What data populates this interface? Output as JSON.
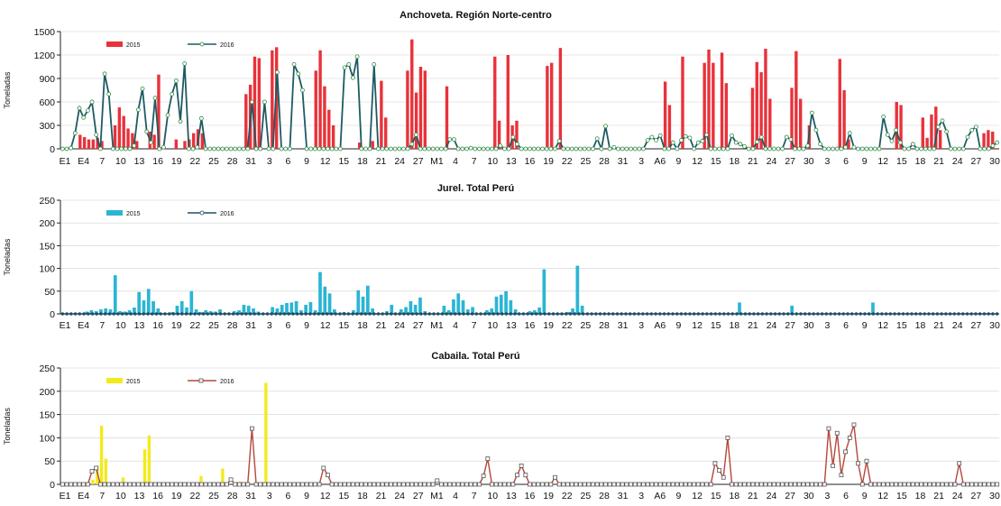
{
  "x_tick_labels": [
    "E1",
    "E4",
    "7",
    "10",
    "13",
    "16",
    "19",
    "22",
    "25",
    "28",
    "31",
    "3",
    "6",
    "9",
    "12",
    "15",
    "18",
    "21",
    "24",
    "27",
    "M1",
    "4",
    "7",
    "10",
    "13",
    "16",
    "19",
    "22",
    "25",
    "28",
    "31",
    "3",
    "A6",
    "9",
    "12",
    "15",
    "18",
    "21",
    "24",
    "27",
    "30",
    "3",
    "6",
    "9",
    "12",
    "15",
    "18",
    "21",
    "24",
    "27",
    "30"
  ],
  "chart_data": [
    {
      "type": "bar+line",
      "title": "Anchoveta. Región Norte-centro",
      "ylabel": "Toneladas",
      "ylim": [
        0,
        1500
      ],
      "yticks": [
        0,
        300,
        600,
        900,
        1200,
        1500
      ],
      "legend": [
        "2015",
        "2016"
      ],
      "colors": {
        "bar": "#e8323a",
        "line": "#1f5a63",
        "marker": "#2e8b45"
      },
      "bars_2015": [
        0,
        0,
        0,
        0,
        180,
        150,
        120,
        120,
        140,
        100,
        0,
        0,
        300,
        530,
        420,
        260,
        200,
        100,
        0,
        0,
        220,
        180,
        950,
        0,
        0,
        0,
        120,
        0,
        100,
        120,
        200,
        250,
        200,
        0,
        0,
        0,
        0,
        0,
        0,
        0,
        0,
        0,
        700,
        820,
        1180,
        1160,
        0,
        0,
        1260,
        1300,
        0,
        0,
        0,
        0,
        0,
        0,
        0,
        0,
        1000,
        1260,
        800,
        500,
        300,
        0,
        0,
        0,
        0,
        0,
        80,
        0,
        0,
        100,
        0,
        870,
        400,
        0,
        0,
        0,
        0,
        1000,
        1400,
        720,
        1050,
        1000,
        0,
        0,
        0,
        0,
        800,
        0,
        0,
        0,
        0,
        0,
        0,
        0,
        0,
        0,
        0,
        1180,
        360,
        0,
        1200,
        300,
        360,
        0,
        0,
        0,
        0,
        0,
        0,
        1060,
        1100,
        0,
        1290,
        0,
        0,
        0,
        0,
        0,
        0,
        0,
        0,
        0,
        0,
        0,
        0,
        0,
        0,
        0,
        0,
        0,
        0,
        0,
        0,
        0,
        0,
        0,
        860,
        560,
        0,
        0,
        1180,
        0,
        0,
        0,
        0,
        1100,
        1270,
        1100,
        0,
        1230,
        840,
        0,
        0,
        0,
        0,
        0,
        780,
        1110,
        980,
        1280,
        640,
        0,
        0,
        0,
        0,
        780,
        1250,
        640,
        0,
        300,
        0,
        0,
        0,
        0,
        0,
        0,
        1150,
        750,
        120,
        0,
        0,
        0,
        0,
        0,
        0,
        0,
        0,
        0,
        0,
        600,
        560,
        0,
        0,
        0,
        0,
        400,
        140,
        440,
        540,
        240,
        0,
        0,
        0,
        0,
        0,
        0,
        0,
        0,
        0,
        200,
        240,
        220,
        0
      ],
      "line_2016": [
        0,
        0,
        10,
        200,
        520,
        400,
        490,
        600,
        180,
        0,
        960,
        700,
        0,
        0,
        0,
        0,
        0,
        40,
        500,
        770,
        220,
        80,
        650,
        0,
        20,
        430,
        700,
        870,
        350,
        1090,
        0,
        0,
        20,
        390,
        0,
        0,
        0,
        0,
        0,
        0,
        0,
        0,
        0,
        0,
        0,
        600,
        0,
        0,
        600,
        0,
        0,
        980,
        0,
        0,
        0,
        1080,
        960,
        750,
        0,
        0,
        0,
        0,
        0,
        0,
        0,
        0,
        0,
        1040,
        1080,
        910,
        1180,
        0,
        0,
        0,
        1080,
        0,
        0,
        0,
        0,
        0,
        0,
        0,
        0,
        60,
        180,
        0,
        0,
        0,
        0,
        0,
        0,
        0,
        120,
        120,
        0,
        0,
        0,
        10,
        0,
        0,
        0,
        0,
        0,
        0,
        40,
        0,
        0,
        150,
        60,
        0,
        0,
        0,
        0,
        0,
        0,
        0,
        0,
        0,
        100,
        0,
        0,
        0,
        0,
        0,
        0,
        0,
        0,
        130,
        0,
        290,
        0,
        20,
        0,
        0,
        0,
        0,
        0,
        0,
        0,
        110,
        150,
        110,
        170,
        0,
        0,
        80,
        0,
        110,
        160,
        140,
        0,
        80,
        100,
        180,
        0,
        0,
        0,
        0,
        0,
        170,
        80,
        60,
        30,
        0,
        0,
        90,
        150,
        0,
        0,
        0,
        0,
        0,
        150,
        120,
        0,
        0,
        0,
        40,
        460,
        240,
        60,
        0,
        0,
        0,
        0,
        0,
        20,
        200,
        20,
        0,
        0,
        0,
        0,
        0,
        0,
        410,
        180,
        100,
        240,
        80,
        0,
        0,
        60,
        0,
        0,
        0,
        0,
        0,
        280,
        360,
        220,
        0,
        0,
        0,
        0,
        150,
        240,
        280,
        0,
        0,
        0,
        40,
        80
      ]
    },
    {
      "type": "bar+line",
      "title": "Jurel. Total Perú",
      "ylabel": "Toneladas",
      "ylim": [
        0,
        250
      ],
      "yticks": [
        0,
        50,
        100,
        150,
        200,
        250
      ],
      "legend": [
        "2015",
        "2016"
      ],
      "colors": {
        "bar": "#2bb5d4",
        "line": "#1f4e66",
        "marker": "#1f4e66"
      },
      "bars_2015": [
        0,
        0,
        0,
        0,
        0,
        5,
        8,
        6,
        10,
        12,
        10,
        85,
        6,
        5,
        8,
        14,
        48,
        30,
        55,
        28,
        12,
        0,
        0,
        4,
        18,
        28,
        14,
        50,
        10,
        4,
        8,
        6,
        5,
        10,
        0,
        0,
        6,
        8,
        20,
        18,
        12,
        5,
        0,
        0,
        15,
        12,
        20,
        24,
        25,
        28,
        8,
        20,
        26,
        8,
        92,
        60,
        45,
        10,
        0,
        4,
        0,
        8,
        52,
        38,
        62,
        12,
        0,
        0,
        6,
        20,
        0,
        10,
        15,
        28,
        20,
        36,
        6,
        0,
        0,
        0,
        18,
        8,
        32,
        45,
        30,
        10,
        15,
        0,
        0,
        8,
        12,
        38,
        42,
        50,
        30,
        10,
        0,
        0,
        6,
        8,
        14,
        98,
        0,
        0,
        0,
        0,
        4,
        12,
        106,
        18,
        0,
        0,
        0,
        0,
        0,
        0,
        0,
        0,
        0,
        0,
        0,
        0,
        0,
        0,
        0,
        0,
        0,
        0,
        0,
        0,
        0,
        0,
        0,
        0,
        0,
        0,
        0,
        0,
        0,
        0,
        0,
        0,
        25,
        0,
        0,
        0,
        0,
        0,
        0,
        0,
        0,
        0,
        0,
        18,
        0,
        0,
        0,
        0,
        0,
        0,
        0,
        0,
        0,
        0,
        0,
        0,
        0,
        0,
        0,
        0,
        25,
        0,
        0,
        0,
        0,
        0,
        0,
        0,
        0,
        0,
        0,
        0,
        0,
        0,
        0,
        0,
        0,
        0,
        0,
        0,
        0,
        0,
        0,
        0,
        0,
        0,
        0
      ],
      "line_2016": [
        0,
        0,
        0,
        0,
        0,
        0,
        0,
        0,
        0,
        0,
        0,
        0,
        0,
        0,
        0,
        0,
        0,
        0,
        0,
        0,
        0,
        0,
        0,
        0,
        0,
        0,
        0,
        0,
        0,
        0,
        0,
        0,
        0,
        0,
        0,
        0,
        0,
        0,
        0,
        0,
        0,
        0,
        0,
        0,
        0,
        0,
        0,
        0,
        0,
        0,
        0,
        0,
        0,
        0,
        0,
        0,
        0,
        0,
        0,
        0,
        0,
        0,
        0,
        0,
        0,
        0,
        0,
        0,
        0,
        0,
        0,
        0,
        0,
        0,
        0,
        0,
        0,
        0,
        0,
        0,
        0,
        0,
        0,
        0,
        0,
        0,
        0,
        0,
        0,
        0,
        0,
        0,
        0,
        0,
        0,
        0,
        0,
        0,
        0,
        0,
        0,
        0,
        0,
        0,
        0,
        0,
        0,
        0,
        0,
        0,
        0,
        0,
        0,
        0,
        0,
        0,
        0,
        0,
        0,
        0,
        0,
        0,
        0,
        0,
        0,
        0,
        0,
        0,
        0,
        0,
        0,
        0,
        0,
        0,
        0,
        0,
        0,
        0,
        0,
        0,
        0,
        0,
        0,
        0,
        0,
        0,
        0,
        0,
        0,
        0,
        0,
        0,
        0,
        0,
        0,
        0,
        0,
        0,
        0,
        0,
        0,
        0,
        0,
        0,
        0,
        0,
        0,
        0,
        0,
        0,
        0,
        0,
        0,
        0,
        0,
        0,
        0,
        0,
        0,
        0,
        0,
        0,
        0,
        0,
        0,
        0,
        0,
        0,
        0,
        0,
        0,
        0,
        0,
        0,
        0,
        0,
        0,
        0,
        0,
        0,
        0,
        0,
        0,
        0,
        0,
        0,
        0,
        0,
        0,
        0,
        0,
        0,
        0,
        0,
        0,
        0,
        0,
        0,
        0,
        0
      ]
    },
    {
      "type": "bar+line",
      "title": "Cabaila. Total Perú",
      "ylabel": "Toneladas",
      "ylim": [
        0,
        250
      ],
      "yticks": [
        0,
        50,
        100,
        150,
        200,
        250
      ],
      "legend": [
        "2015",
        "2016"
      ],
      "colors": {
        "bar": "#f2ea1c",
        "line": "#b5473a",
        "marker": "#555555"
      },
      "bars_2015": [
        0,
        0,
        0,
        0,
        0,
        0,
        0,
        10,
        40,
        126,
        55,
        0,
        0,
        0,
        15,
        0,
        0,
        0,
        0,
        75,
        105,
        0,
        0,
        0,
        0,
        0,
        0,
        0,
        0,
        0,
        0,
        0,
        18,
        0,
        0,
        0,
        0,
        34,
        0,
        0,
        0,
        6,
        0,
        0,
        0,
        0,
        0,
        218,
        0,
        0,
        0,
        0,
        0,
        0,
        0,
        0,
        0,
        0,
        0,
        0,
        0,
        0,
        0,
        0,
        0,
        0,
        0,
        0,
        0,
        0,
        0,
        0,
        0,
        0,
        0,
        0,
        0,
        0,
        0,
        0,
        0,
        0,
        0,
        0,
        0,
        0,
        0,
        0,
        0,
        0,
        0,
        0,
        0,
        0,
        0,
        0,
        0,
        0,
        0,
        0,
        0,
        0,
        0,
        0,
        0,
        0,
        0,
        0,
        0,
        0,
        0,
        0,
        0,
        0,
        0,
        0,
        0,
        0,
        0,
        0,
        0,
        0,
        0,
        0,
        0,
        0,
        0,
        0,
        0,
        0,
        0,
        0,
        0,
        0,
        0,
        0,
        0,
        0,
        0,
        0,
        0,
        0,
        0,
        0,
        0,
        0,
        0,
        0,
        0,
        0,
        0,
        0,
        0,
        0,
        0,
        0,
        0,
        0,
        0,
        0,
        0,
        0,
        0,
        0,
        0,
        0,
        0,
        0,
        0,
        0,
        0,
        0,
        0,
        0,
        0,
        0,
        0,
        0,
        0,
        0,
        0,
        0,
        0,
        0,
        0,
        0,
        0,
        0,
        0,
        0,
        0,
        0,
        0,
        0,
        0,
        0,
        0,
        0,
        0,
        0,
        0,
        0,
        0,
        0,
        0,
        0,
        0,
        0,
        0,
        0,
        0,
        0,
        0,
        0,
        0,
        0,
        0
      ],
      "line_2016": [
        0,
        0,
        0,
        0,
        0,
        0,
        0,
        28,
        35,
        0,
        0,
        0,
        0,
        0,
        0,
        0,
        0,
        0,
        0,
        0,
        0,
        0,
        0,
        0,
        0,
        0,
        0,
        0,
        0,
        0,
        0,
        0,
        0,
        0,
        0,
        0,
        0,
        0,
        0,
        0,
        10,
        0,
        0,
        0,
        0,
        120,
        0,
        0,
        0,
        0,
        0,
        0,
        0,
        0,
        0,
        0,
        0,
        0,
        0,
        0,
        0,
        0,
        35,
        20,
        0,
        0,
        0,
        0,
        0,
        0,
        0,
        0,
        0,
        0,
        0,
        0,
        0,
        0,
        0,
        0,
        0,
        0,
        0,
        0,
        0,
        0,
        0,
        0,
        0,
        8,
        0,
        0,
        0,
        0,
        0,
        0,
        0,
        0,
        0,
        0,
        18,
        55,
        0,
        0,
        0,
        0,
        0,
        0,
        20,
        40,
        20,
        0,
        0,
        0,
        0,
        0,
        0,
        15,
        0,
        0,
        0,
        0,
        0,
        0,
        0,
        0,
        0,
        0,
        0,
        0,
        0,
        0,
        0,
        0,
        0,
        0,
        0,
        0,
        0,
        0,
        0,
        0,
        0,
        0,
        0,
        0,
        0,
        0,
        0,
        0,
        0,
        0,
        0,
        0,
        0,
        45,
        30,
        15,
        100,
        0,
        0,
        0,
        0,
        0,
        0,
        0,
        0,
        0,
        0,
        0,
        0,
        0,
        0,
        0,
        0,
        0,
        0,
        0,
        0,
        0,
        0,
        0,
        120,
        40,
        110,
        20,
        70,
        100,
        128,
        45,
        0,
        50,
        0,
        0,
        0,
        0,
        0,
        0,
        0,
        0,
        0,
        0,
        0,
        0,
        0,
        0,
        0,
        0,
        0,
        0,
        0,
        0,
        0,
        45,
        0,
        0,
        0,
        0,
        0,
        0,
        0,
        0,
        0
      ]
    }
  ]
}
